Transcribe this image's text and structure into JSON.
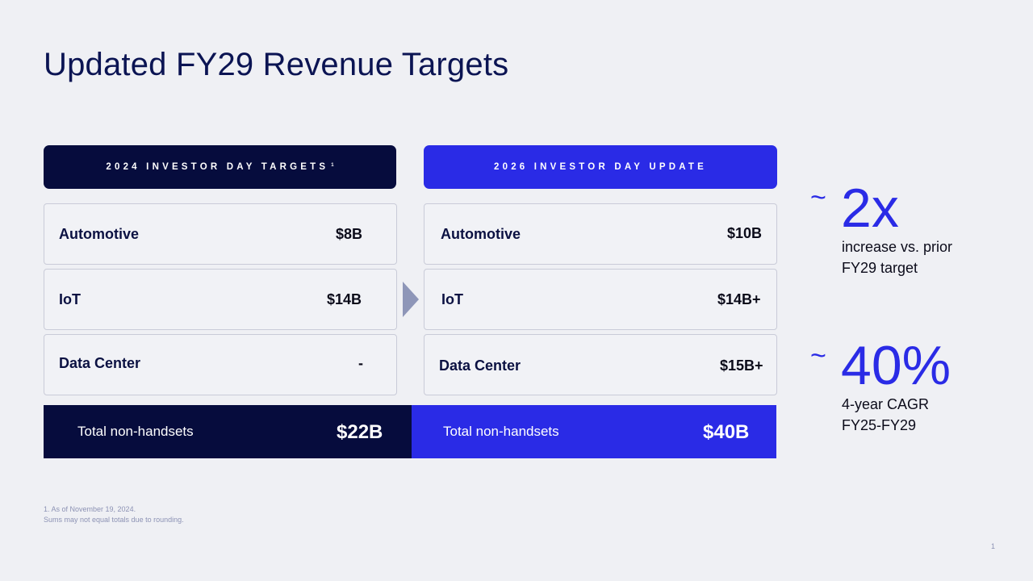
{
  "title": "Updated FY29 Revenue Targets",
  "left_column": {
    "header": "2024 INVESTOR DAY TARGETS",
    "header_sup": "1",
    "rows": [
      {
        "label": "Automotive",
        "value": "$8B"
      },
      {
        "label": "IoT",
        "value": "$14B"
      },
      {
        "label": "Data Center",
        "value": "-"
      }
    ],
    "total_label": "Total non-handsets",
    "total_value": "$22B"
  },
  "right_column": {
    "header": "2026 INVESTOR DAY UPDATE",
    "rows": [
      {
        "label": "Automotive",
        "value": "$10B"
      },
      {
        "label": "IoT",
        "value": "$14B+"
      },
      {
        "label": "Data Center",
        "value": "$15B+"
      }
    ],
    "total_label": "Total non-handsets",
    "total_value": "$40B"
  },
  "stats": [
    {
      "tilde": "~",
      "big": "2x",
      "line1": "increase vs. prior",
      "line2": "FY29 target"
    },
    {
      "tilde": "~",
      "big": "40%",
      "line1": "4-year CAGR",
      "line2": "FY25-FY29"
    }
  ],
  "footnotes": {
    "line1": "1. As of November 19, 2024.",
    "line2": "Sums may not equal totals due to rounding."
  },
  "page_number": "1",
  "colors": {
    "navy": "#060c3d",
    "accent_blue": "#2a2be6",
    "background": "#eff0f4"
  }
}
